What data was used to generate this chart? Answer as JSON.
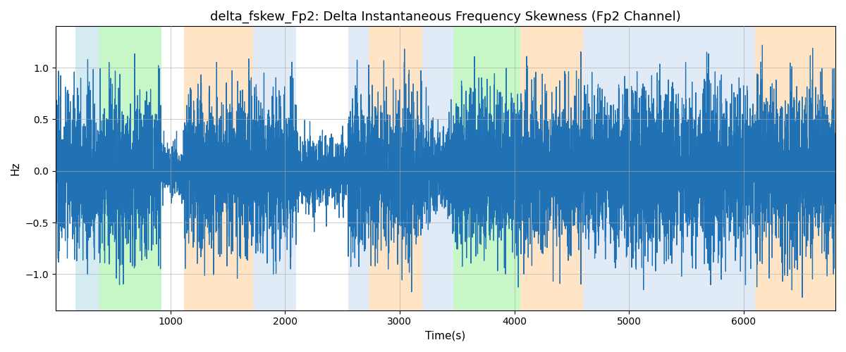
{
  "title": "delta_fskew_Fp2: Delta Instantaneous Frequency Skewness (Fp2 Channel)",
  "xlabel": "Time(s)",
  "ylabel": "Hz",
  "xlim": [
    0,
    6800
  ],
  "ylim": [
    -1.35,
    1.4
  ],
  "yticks": [
    -1.0,
    -0.5,
    0.0,
    0.5,
    1.0
  ],
  "xticks": [
    1000,
    2000,
    3000,
    4000,
    5000,
    6000
  ],
  "bg_regions": [
    {
      "xstart": 170,
      "xend": 380,
      "color": "#add8e6",
      "alpha": 0.5
    },
    {
      "xstart": 380,
      "xend": 920,
      "color": "#90ee90",
      "alpha": 0.5
    },
    {
      "xstart": 1120,
      "xend": 1720,
      "color": "#ffd5a0",
      "alpha": 0.6
    },
    {
      "xstart": 1720,
      "xend": 2100,
      "color": "#c5d8f0",
      "alpha": 0.5
    },
    {
      "xstart": 2550,
      "xend": 2730,
      "color": "#c5d8f0",
      "alpha": 0.5
    },
    {
      "xstart": 2730,
      "xend": 3200,
      "color": "#ffd5a0",
      "alpha": 0.6
    },
    {
      "xstart": 3200,
      "xend": 3470,
      "color": "#c5d8f0",
      "alpha": 0.5
    },
    {
      "xstart": 3470,
      "xend": 4050,
      "color": "#90ee90",
      "alpha": 0.5
    },
    {
      "xstart": 4050,
      "xend": 4600,
      "color": "#ffd5a0",
      "alpha": 0.6
    },
    {
      "xstart": 4600,
      "xend": 6100,
      "color": "#c5d8f0",
      "alpha": 0.5
    },
    {
      "xstart": 6100,
      "xend": 6800,
      "color": "#ffd5a0",
      "alpha": 0.6
    }
  ],
  "line_color": "#2171b5",
  "line_width": 0.9,
  "grid": true,
  "grid_color": "#aaaaaa",
  "grid_alpha": 0.6,
  "grid_linewidth": 0.7,
  "title_fontsize": 13,
  "axis_label_fontsize": 11,
  "tick_fontsize": 10
}
